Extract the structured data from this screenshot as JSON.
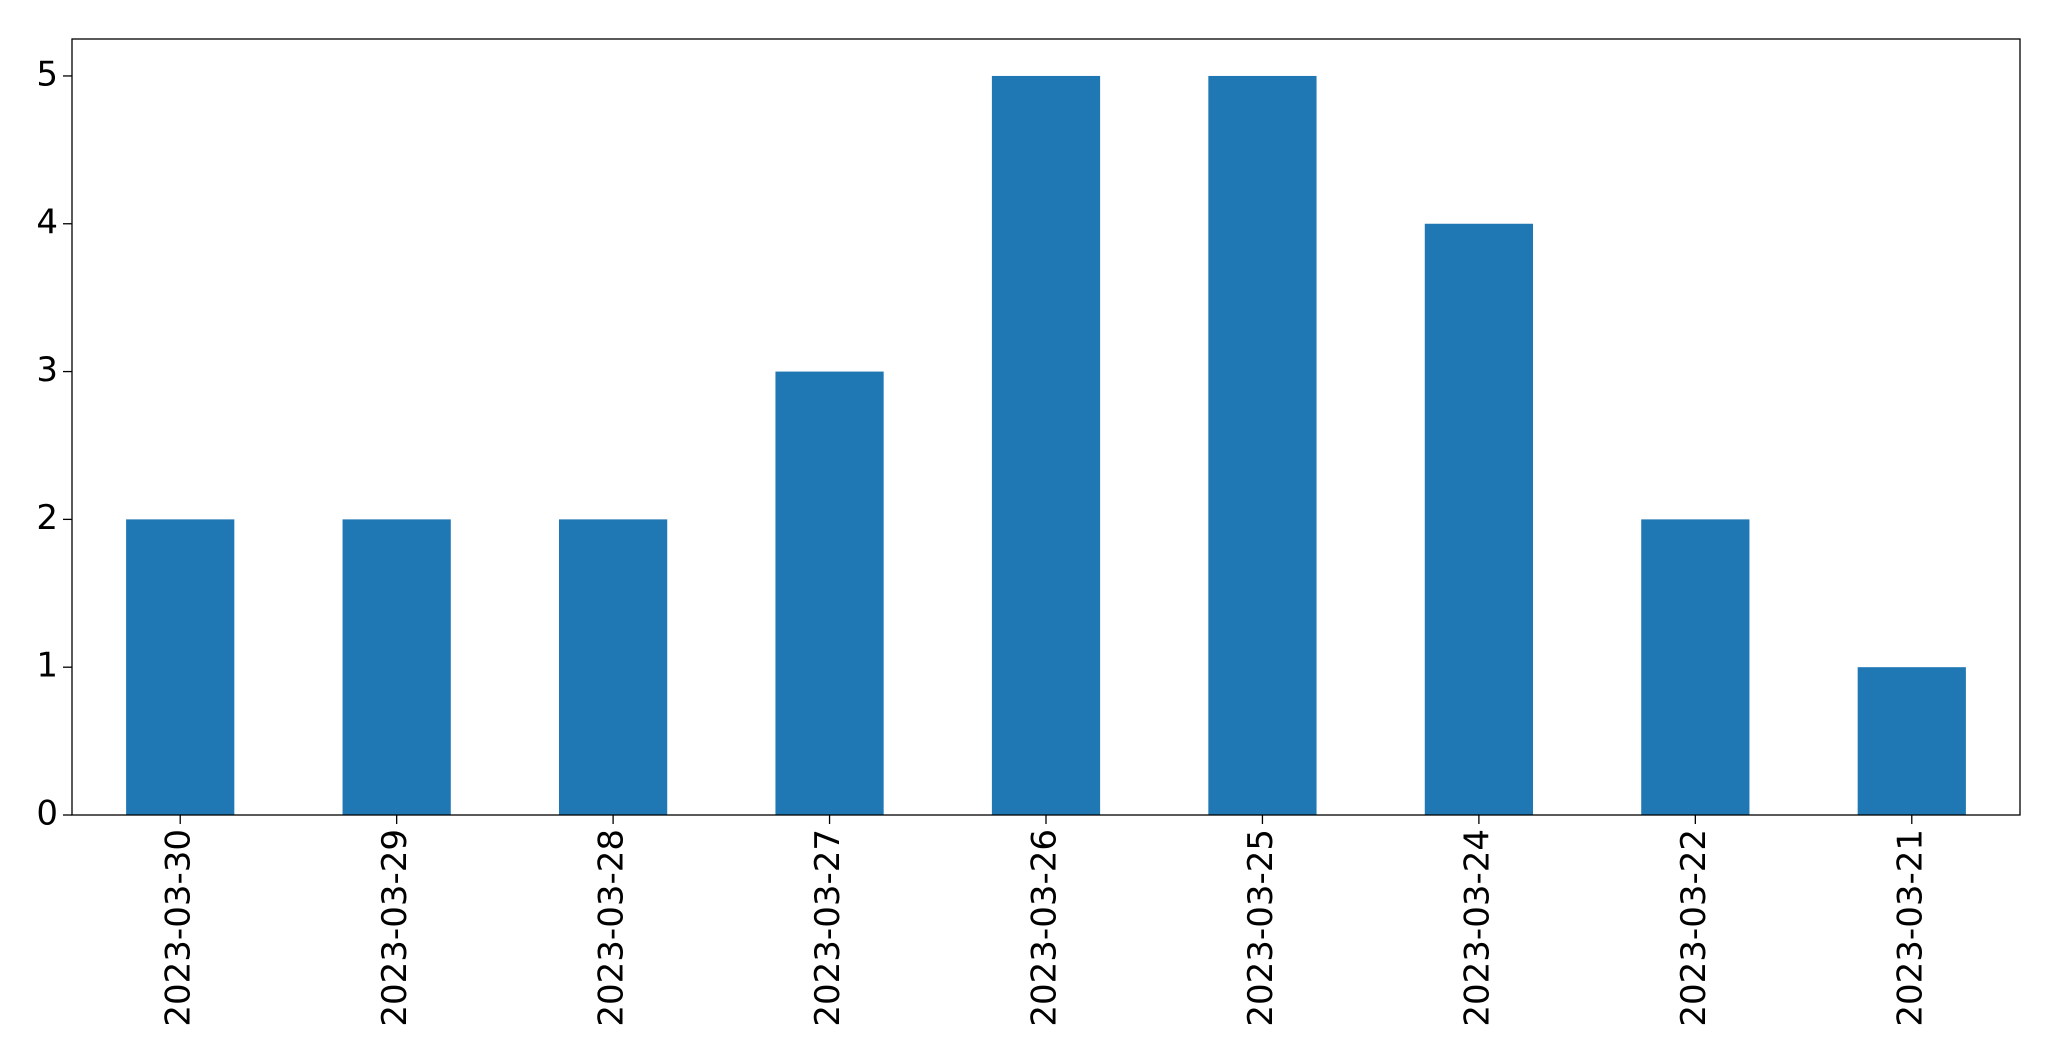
{
  "chart_data": {
    "type": "bar",
    "categories": [
      "2023-03-30",
      "2023-03-29",
      "2023-03-28",
      "2023-03-27",
      "2023-03-26",
      "2023-03-25",
      "2023-03-24",
      "2023-03-22",
      "2023-03-21"
    ],
    "values": [
      2,
      2,
      2,
      3,
      5,
      5,
      4,
      2,
      1
    ],
    "color": "#1f77b4",
    "ylim": [
      0,
      5.25
    ],
    "yticks": [
      0,
      1,
      2,
      3,
      4,
      5
    ],
    "grid": false
  }
}
